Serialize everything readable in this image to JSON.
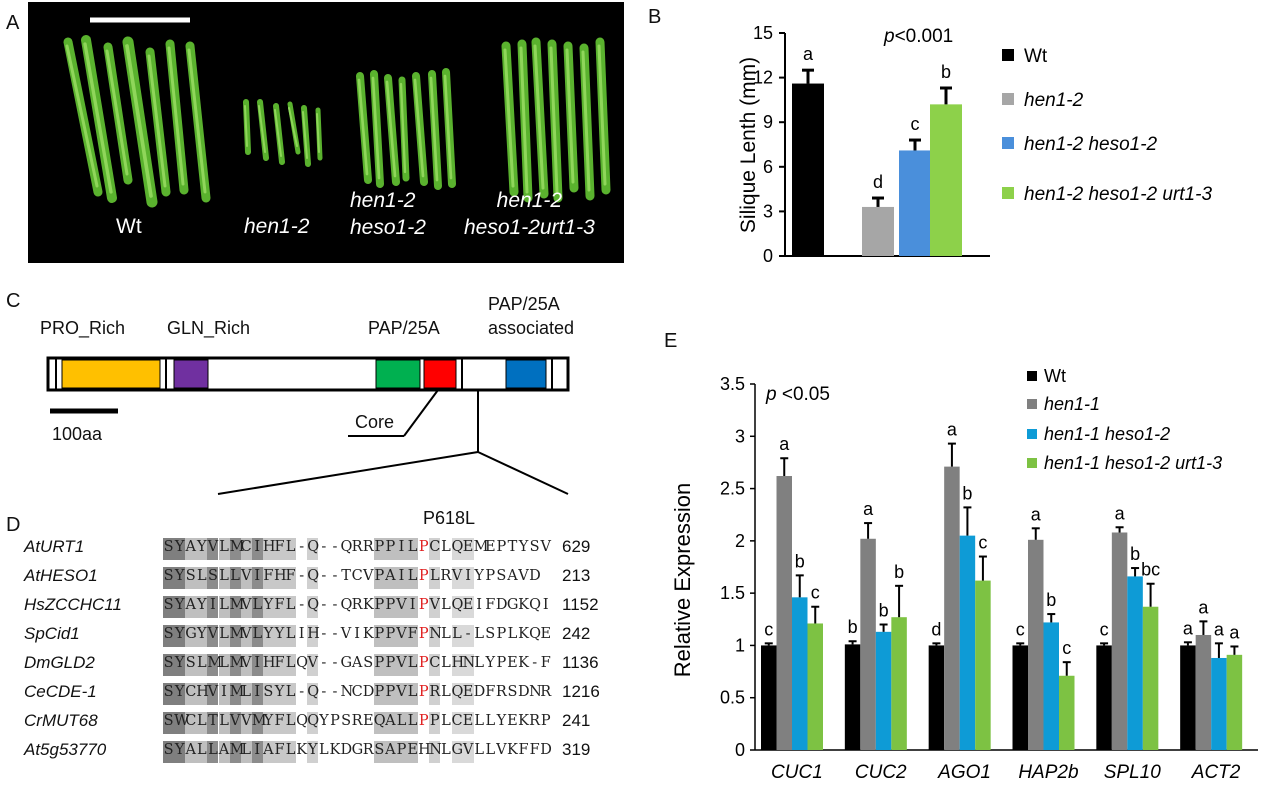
{
  "panels": {
    "a": {
      "letter": "A",
      "labels": [
        "Wt",
        "hen1-2",
        "hen1-2\nheso1-2",
        "hen1-2\nheso1-2urt1-3"
      ]
    },
    "b": {
      "letter": "B",
      "pvalue": "p<0.001"
    },
    "c": {
      "letter": "C",
      "domains": {
        "pro_rich": "PRO_Rich",
        "gln_rich": "GLN_Rich",
        "pap": "PAP/25A",
        "pap_assoc_1": "PAP/25A",
        "pap_assoc_2": "associated"
      },
      "core_label": "Core",
      "scale_label": "100aa",
      "colors": {
        "pro": "#FFC000",
        "gln": "#7030A0",
        "pap_green": "#00B050",
        "pap_red": "#FF0000",
        "assoc": "#0070C0"
      }
    },
    "d": {
      "letter": "D",
      "mutation": "P618L",
      "sequences": [
        {
          "name": "AtURT1",
          "seq": "SYAYVLMCIHFL-Q--QRRPPILPCLQEMEPTYSV",
          "num": "629"
        },
        {
          "name": "AtHESO1",
          "seq": "SYSLSLLVIFHF-Q--TCVPAILPLRVIYPSAVD",
          "num": "213"
        },
        {
          "name": "HsZCCHC11",
          "seq": "SYAYILMVLYFL-Q--QRKPPVIPVLQEIFDGKQI",
          "num": "1152"
        },
        {
          "name": "SpCid1",
          "seq": "SYGYVLMVLYYLIH--VIKPPVFPNLL-LSPLKQE",
          "num": "242"
        },
        {
          "name": "DmGLD2",
          "seq": "SYSLMLMVIHFLQV--GASPPVLPCLHNLYPEK-F",
          "num": "1136"
        },
        {
          "name": "CeCDE-1",
          "seq": "SYCHVIMLISYL-Q--NCDPPVLPRLQEDFRSDNR",
          "num": "1216"
        },
        {
          "name": "CrMUT68",
          "seq": "SWCLTLVVMYFLQQYPSREQALLPPLCELLYEKRP",
          "num": "241"
        },
        {
          "name": "At5g53770",
          "seq": "SYALLAMLIAFLKYLKDGRSAPEHNLGVLLVKFFD",
          "num": "319"
        }
      ]
    },
    "e": {
      "letter": "E",
      "pvalue": "p <0.05"
    }
  },
  "chart_data": [
    {
      "type": "bar",
      "panel": "B",
      "categories": [
        "Wt",
        "hen1-2",
        "hen1-2 heso1-2",
        "hen1-2 heso1-2 urt1-3"
      ],
      "values": [
        11.6,
        3.3,
        7.1,
        10.2
      ],
      "errors": [
        0.9,
        0.6,
        0.7,
        1.1
      ],
      "letters": [
        "a",
        "d",
        "c",
        "b"
      ],
      "colors": [
        "#000000",
        "#A6A6A6",
        "#4A8FDB",
        "#8DD14A"
      ],
      "ylabel": "Silique Lenth (mm)",
      "ylim": [
        0,
        15
      ],
      "yticks": [
        "0",
        "3",
        "6",
        "9",
        "12",
        "15"
      ],
      "legend": [
        "Wt",
        "hen1-2",
        "hen1-2 heso1-2",
        "hen1-2 heso1-2 urt1-3"
      ],
      "legend_position": "right"
    },
    {
      "type": "bar",
      "panel": "E",
      "categories": [
        "CUC1",
        "CUC2",
        "AGO1",
        "HAP2b",
        "SPL10",
        "ACT2"
      ],
      "ylabel": "Relative Expression",
      "ylim": [
        0,
        3.5
      ],
      "yticks": [
        "0",
        "0.5",
        "1",
        "1.5",
        "2",
        "2.5",
        "3",
        "3.5"
      ],
      "legend": [
        "Wt",
        "hen1-1",
        "hen1-1 heso1-2",
        "hen1-1 heso1-2 urt1-3"
      ],
      "legend_position": "top-right",
      "colors": [
        "#000000",
        "#808080",
        "#0E9BD6",
        "#7DC243"
      ],
      "series": [
        {
          "name": "Wt",
          "values": [
            1.0,
            1.01,
            1.0,
            1.0,
            1.0,
            1.0
          ],
          "errors": [
            0.02,
            0.03,
            0.02,
            0.02,
            0.02,
            0.03
          ],
          "letters": [
            "c",
            "b",
            "d",
            "c",
            "c",
            "a"
          ]
        },
        {
          "name": "hen1-1",
          "values": [
            2.62,
            2.02,
            2.71,
            2.01,
            2.08,
            1.1
          ],
          "errors": [
            0.17,
            0.15,
            0.22,
            0.11,
            0.05,
            0.13
          ],
          "letters": [
            "a",
            "a",
            "a",
            "a",
            "a",
            "a"
          ]
        },
        {
          "name": "hen1-1 heso1-2",
          "values": [
            1.46,
            1.13,
            2.05,
            1.22,
            1.66,
            0.88
          ],
          "errors": [
            0.21,
            0.07,
            0.27,
            0.08,
            0.08,
            0.14
          ],
          "letters": [
            "b",
            "b",
            "b",
            "b",
            "b",
            "a"
          ]
        },
        {
          "name": "hen1-1 heso1-2 urt1-3",
          "values": [
            1.21,
            1.27,
            1.62,
            0.71,
            1.37,
            0.91
          ],
          "errors": [
            0.16,
            0.3,
            0.23,
            0.13,
            0.22,
            0.08
          ],
          "letters": [
            "c",
            "b",
            "c",
            "c",
            "bc",
            "a"
          ]
        }
      ]
    }
  ]
}
